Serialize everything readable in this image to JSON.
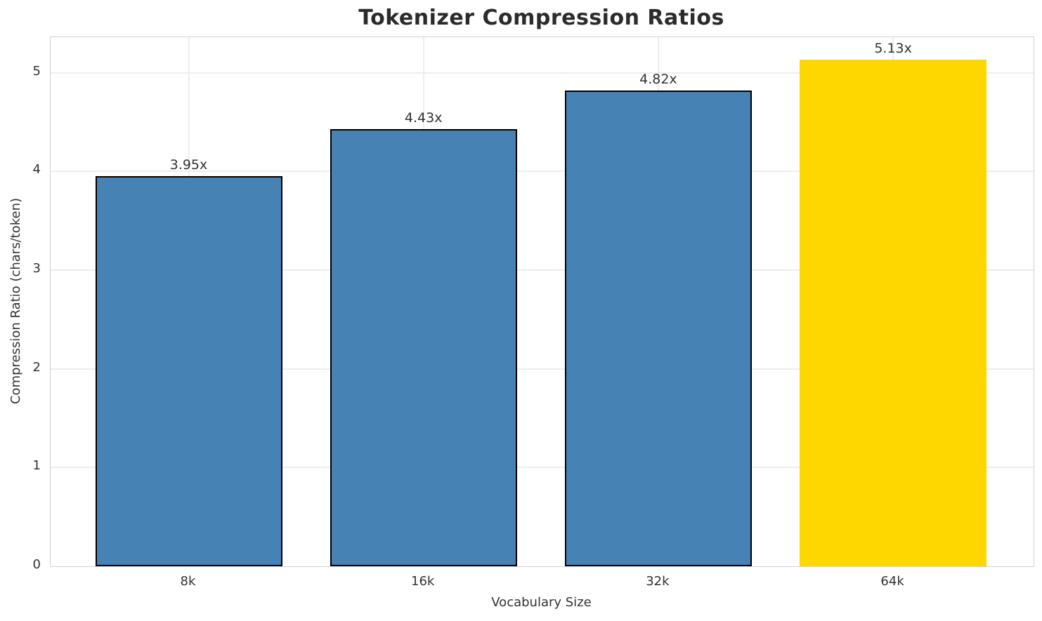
{
  "title": "Tokenizer Compression Ratios",
  "chart_data": {
    "type": "bar",
    "title": "Tokenizer Compression Ratios",
    "xlabel": "Vocabulary Size",
    "ylabel": "Compression Ratio (chars/token)",
    "categories": [
      "8k",
      "16k",
      "32k",
      "64k"
    ],
    "values": [
      3.95,
      4.43,
      4.82,
      5.13
    ],
    "bar_labels": [
      "3.95x",
      "4.43x",
      "4.82x",
      "5.13x"
    ],
    "bar_colors": [
      "#4682B4",
      "#4682B4",
      "#4682B4",
      "#FFD700"
    ],
    "bar_edge_colors": [
      "#000000",
      "#000000",
      "#000000",
      "none"
    ],
    "highlight_index": 3,
    "yticks": [
      0,
      1,
      2,
      3,
      4,
      5
    ],
    "ylim": [
      0,
      5.36
    ],
    "grid": true,
    "legend": "none",
    "grid_color": "#ededed",
    "spine_color": "#d2d2d2",
    "text_color": "#333333"
  }
}
